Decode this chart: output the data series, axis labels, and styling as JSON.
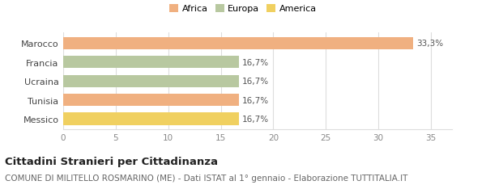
{
  "categories": [
    "Messico",
    "Tunisia",
    "Ucraina",
    "Francia",
    "Marocco"
  ],
  "values": [
    16.7,
    16.7,
    16.7,
    16.7,
    33.3
  ],
  "bar_colors": [
    "#f0d060",
    "#f0b080",
    "#b8c8a0",
    "#b8c8a0",
    "#f0b080"
  ],
  "labels": [
    "16,7%",
    "16,7%",
    "16,7%",
    "16,7%",
    "33,3%"
  ],
  "legend": [
    {
      "label": "Africa",
      "color": "#f0b080"
    },
    {
      "label": "Europa",
      "color": "#b8c8a0"
    },
    {
      "label": "America",
      "color": "#f0d060"
    }
  ],
  "xlim": [
    0,
    37
  ],
  "xticks": [
    0,
    5,
    10,
    15,
    20,
    25,
    30,
    35
  ],
  "title": "Cittadini Stranieri per Cittadinanza",
  "subtitle": "COMUNE DI MILITELLO ROSMARINO (ME) - Dati ISTAT al 1° gennaio - Elaborazione TUTTITALIA.IT",
  "background_color": "#ffffff",
  "grid_color": "#dddddd",
  "label_fontsize": 7.5,
  "ytick_fontsize": 8,
  "xtick_fontsize": 7.5,
  "title_fontsize": 9.5,
  "subtitle_fontsize": 7.5
}
